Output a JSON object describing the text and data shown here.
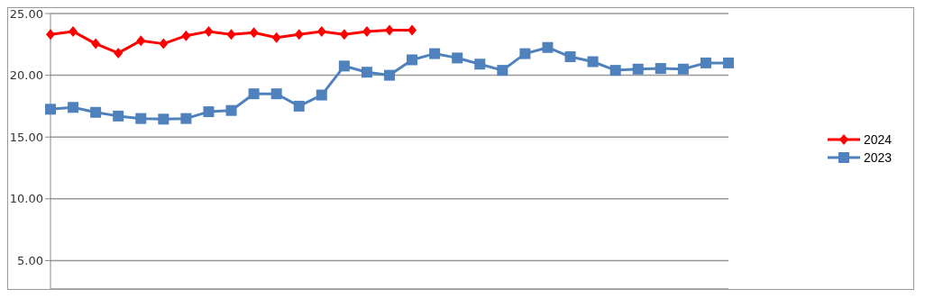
{
  "chart_data": {
    "type": "line",
    "categories": [
      null,
      null,
      null,
      null,
      null,
      null,
      null,
      null,
      null,
      null,
      null,
      null,
      null,
      null,
      null,
      null,
      null,
      null,
      null,
      null,
      null,
      null,
      null,
      null,
      null,
      null,
      null,
      null,
      null,
      null,
      null
    ],
    "series": [
      {
        "name": "2024",
        "color": "#ff0000",
        "marker": "diamond",
        "values": [
          23.3,
          23.55,
          22.55,
          21.8,
          22.8,
          22.55,
          23.2,
          23.55,
          23.3,
          23.45,
          23.05,
          23.3,
          23.55,
          23.3,
          23.55,
          23.65,
          23.65,
          null,
          null,
          null,
          null,
          null,
          null,
          null,
          null,
          null,
          null,
          null,
          null,
          null,
          null
        ]
      },
      {
        "name": "2023",
        "color": "#4f81bd",
        "marker": "square",
        "values": [
          17.25,
          17.4,
          17.0,
          16.7,
          16.5,
          16.45,
          16.5,
          17.05,
          17.15,
          18.5,
          18.5,
          17.5,
          18.4,
          20.75,
          20.25,
          20.0,
          21.25,
          21.75,
          21.4,
          20.9,
          20.4,
          21.75,
          22.25,
          21.5,
          21.1,
          20.4,
          20.5,
          20.55,
          20.5,
          21.0,
          21.0
        ]
      }
    ],
    "ylim": [
      2.7,
      25
    ],
    "yticks": [
      {
        "value": 5,
        "label": "5.00"
      },
      {
        "value": 10,
        "label": "10.00"
      },
      {
        "value": 15,
        "label": "15.00"
      },
      {
        "value": 20,
        "label": "20.00"
      },
      {
        "value": 25,
        "label": "25.00"
      }
    ],
    "grid": "y",
    "legend": "right",
    "tick_labels": "y"
  }
}
